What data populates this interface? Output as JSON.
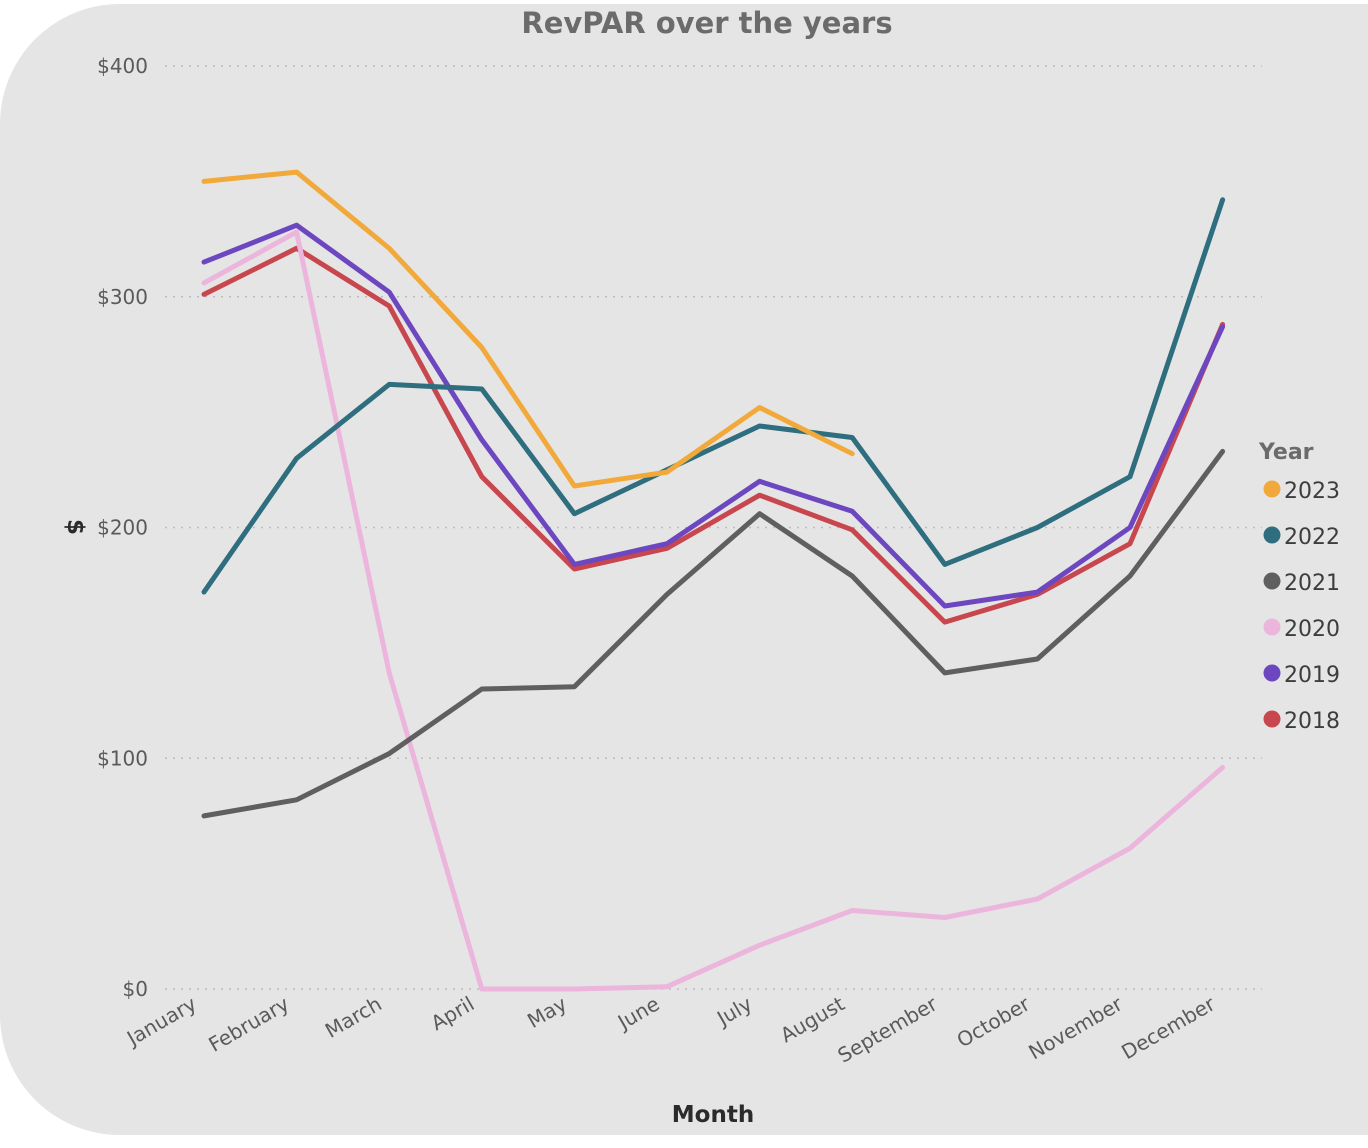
{
  "chart_data": {
    "type": "line",
    "title": "RevPAR over the years",
    "xlabel": "Month",
    "ylabel": "$",
    "ylim": [
      0,
      400
    ],
    "y_ticks": [
      0,
      100,
      200,
      300,
      400
    ],
    "y_tick_labels": [
      "$0",
      "$100",
      "$200",
      "$300",
      "$400"
    ],
    "grid": true,
    "legend_title": "Year",
    "legend_position": "right",
    "categories": [
      "January",
      "February",
      "March",
      "April",
      "May",
      "June",
      "July",
      "August",
      "September",
      "October",
      "November",
      "December"
    ],
    "series": [
      {
        "name": "2023",
        "color": "#F2A93B",
        "values": [
          350,
          354,
          321,
          278,
          218,
          224,
          252,
          232,
          null,
          null,
          null,
          null
        ]
      },
      {
        "name": "2022",
        "color": "#2E6E7E",
        "values": [
          172,
          230,
          262,
          260,
          206,
          225,
          244,
          239,
          184,
          200,
          222,
          342
        ]
      },
      {
        "name": "2021",
        "color": "#5F5F5F",
        "values": [
          75,
          82,
          102,
          130,
          131,
          171,
          206,
          179,
          137,
          143,
          179,
          233
        ]
      },
      {
        "name": "2020",
        "color": "#EBB5DC",
        "values": [
          306,
          328,
          137,
          0,
          0,
          1,
          19,
          34,
          31,
          39,
          61,
          96
        ]
      },
      {
        "name": "2019",
        "color": "#6D47BF",
        "values": [
          315,
          331,
          302,
          238,
          184,
          193,
          220,
          207,
          166,
          172,
          200,
          287
        ]
      },
      {
        "name": "2018",
        "color": "#C8474F",
        "values": [
          301,
          321,
          296,
          222,
          182,
          191,
          214,
          199,
          159,
          171,
          193,
          288
        ]
      }
    ]
  }
}
